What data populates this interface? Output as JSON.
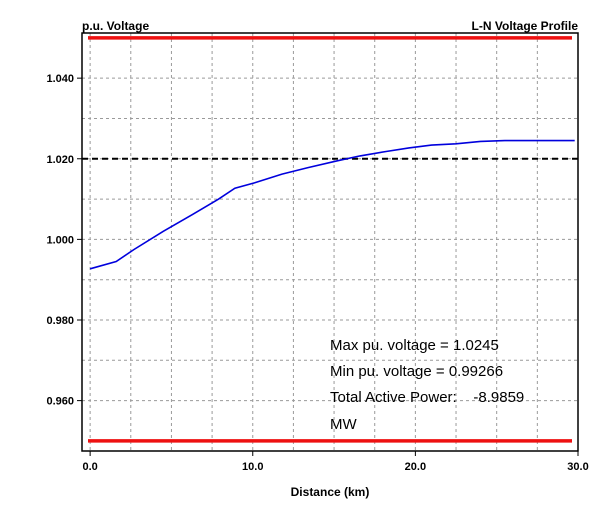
{
  "chart_data": {
    "type": "line",
    "ylabel": "p.u. Voltage",
    "title": "L-N Voltage Profile",
    "xlabel": "Distance (km)",
    "xlim": [
      -0.5,
      30
    ],
    "ylim": [
      0.9475,
      1.0512
    ],
    "grid": true,
    "x_ticks": [
      {
        "value": 0,
        "label": "0.0"
      },
      {
        "value": 10,
        "label": "10.0"
      },
      {
        "value": 20,
        "label": "20.0"
      },
      {
        "value": 30,
        "label": "30.0"
      }
    ],
    "y_ticks": [
      {
        "value": 0.96,
        "label": "0.960"
      },
      {
        "value": 0.98,
        "label": "0.980"
      },
      {
        "value": 1.0,
        "label": "1.000"
      },
      {
        "value": 1.02,
        "label": "1.020"
      },
      {
        "value": 1.04,
        "label": "1.040"
      }
    ],
    "x_grid": [
      0,
      2.5,
      5,
      7.5,
      10,
      12.5,
      15,
      17.5,
      20,
      22.5,
      25,
      27.5
    ],
    "y_grid": [
      0.96,
      0.97,
      0.98,
      0.99,
      1.0,
      1.01,
      1.02,
      1.03,
      1.04
    ],
    "series": [
      {
        "color": "#0000dd",
        "x": [
          0,
          1.6,
          2.7,
          4.5,
          6.3,
          7.9,
          8.9,
          10.1,
          11.8,
          13.4,
          15.2,
          16.6,
          18.2,
          19.6,
          21.0,
          22.5,
          24.0,
          25.5,
          27.0,
          29.8
        ],
        "y": [
          0.9927,
          0.9945,
          0.9975,
          1.002,
          1.0062,
          1.01,
          1.0127,
          1.014,
          1.0162,
          1.0178,
          1.0195,
          1.0207,
          1.0218,
          1.0227,
          1.0234,
          1.0237,
          1.0243,
          1.0245,
          1.0245,
          1.0245
        ]
      }
    ],
    "reference_lines": [
      {
        "value": 1.05,
        "color": "#ee1111",
        "style": "solid"
      },
      {
        "value": 0.95,
        "color": "#ee1111",
        "style": "solid"
      },
      {
        "value": 1.02,
        "color": "#000000",
        "style": "dashed"
      }
    ],
    "annotations": [
      "Max pu. voltage = 1.0245",
      "Min pu. voltage = 0.99266",
      "Total Active Power:    -8.9859",
      "MW"
    ]
  }
}
